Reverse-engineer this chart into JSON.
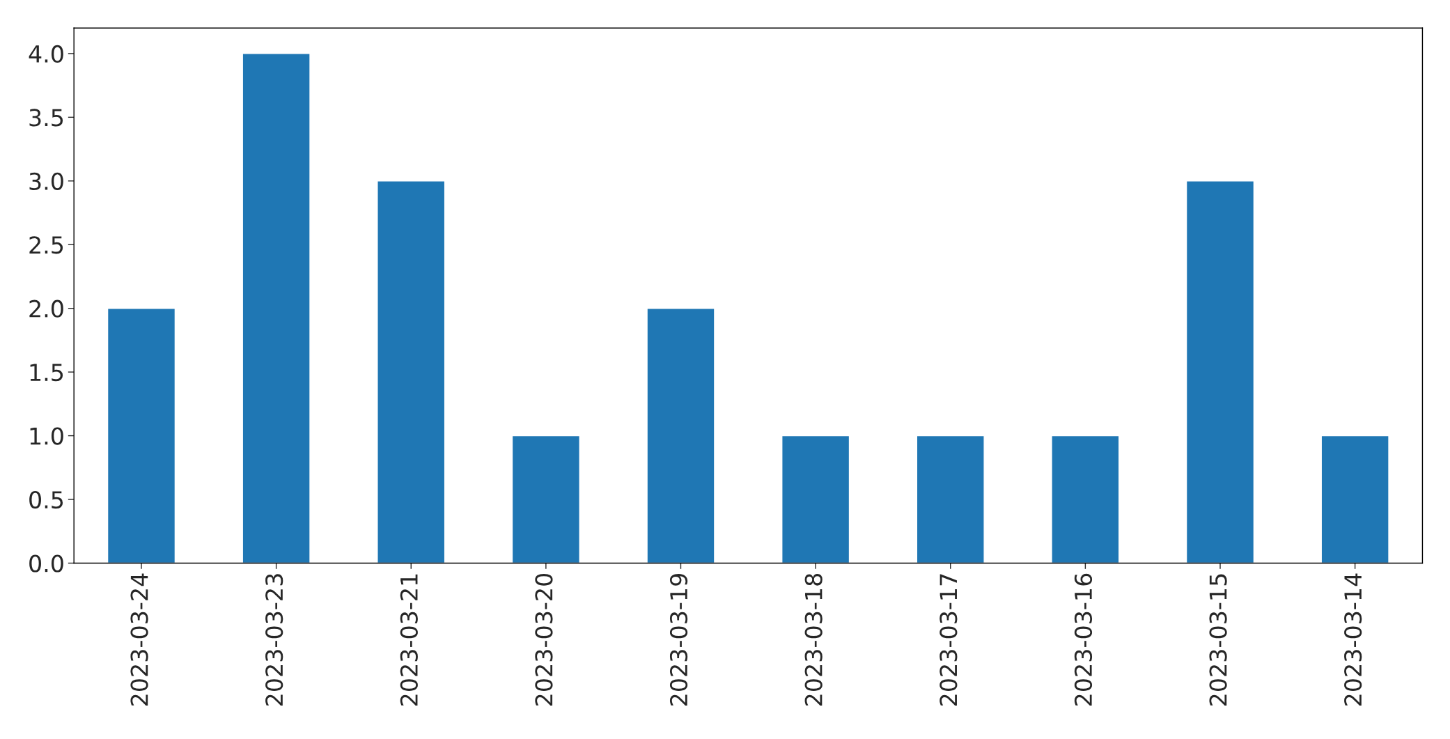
{
  "chart_data": {
    "type": "bar",
    "categories": [
      "2023-03-24",
      "2023-03-23",
      "2023-03-21",
      "2023-03-20",
      "2023-03-19",
      "2023-03-18",
      "2023-03-17",
      "2023-03-16",
      "2023-03-15",
      "2023-03-14"
    ],
    "values": [
      2,
      4,
      3,
      1,
      2,
      1,
      1,
      1,
      3,
      1
    ],
    "color": "#1f77b4",
    "ylim": [
      0,
      4.2
    ],
    "yticks": [
      {
        "value": 0,
        "label": "0.0"
      },
      {
        "value": 0.5,
        "label": "0.5"
      },
      {
        "value": 1,
        "label": "1.0"
      },
      {
        "value": 1.5,
        "label": "1.5"
      },
      {
        "value": 2,
        "label": "2.0"
      },
      {
        "value": 2.5,
        "label": "2.5"
      },
      {
        "value": 3,
        "label": "3.0"
      },
      {
        "value": 3.5,
        "label": "3.5"
      },
      {
        "value": 4,
        "label": "4.0"
      }
    ],
    "grid": false,
    "legend": false
  }
}
